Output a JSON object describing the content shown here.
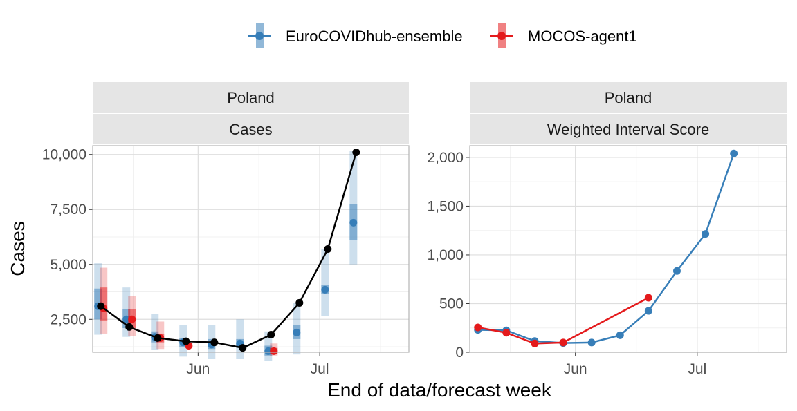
{
  "legend": {
    "entries": [
      {
        "name": "EuroCOVIDhub-ensemble",
        "color": "#377eb8"
      },
      {
        "name": "MOCOS-agent1",
        "color": "#e41a1c"
      }
    ]
  },
  "xlabel": "End of data/forecast week",
  "ylabel": "Cases",
  "chart_data": [
    {
      "type": "line",
      "strip": [
        "Poland",
        "Cases"
      ],
      "ylabel": "Cases",
      "xlabel": "End of data/forecast week",
      "ylim": [
        1000,
        10400
      ],
      "yticks": [
        2500,
        5000,
        7500,
        10000
      ],
      "ytick_labels": [
        "2,500",
        "5,000",
        "7,500",
        "10,000"
      ],
      "xlim": [
        "2021-05-06",
        "2021-07-23"
      ],
      "xticks": [
        "2021-06-01",
        "2021-07-01"
      ],
      "xtick_labels": [
        "Jun",
        "Jul"
      ],
      "observed": {
        "x": [
          "2021-05-08",
          "2021-05-15",
          "2021-05-22",
          "2021-05-29",
          "2021-06-05",
          "2021-06-12",
          "2021-06-19",
          "2021-06-26",
          "2021-07-03",
          "2021-07-10"
        ],
        "y": [
          3100,
          2150,
          1650,
          1500,
          1450,
          1200,
          1800,
          3250,
          5700,
          10100
        ]
      },
      "forecasts": [
        {
          "name": "EuroCOVIDhub-ensemble",
          "color": "#377eb8",
          "x": [
            "2021-05-08",
            "2021-05-15",
            "2021-05-22",
            "2021-05-29",
            "2021-06-05",
            "2021-06-12",
            "2021-06-19",
            "2021-06-26",
            "2021-07-03",
            "2021-07-10"
          ],
          "median": [
            3100,
            2500,
            1700,
            1450,
            1350,
            1400,
            1050,
            1900,
            3850,
            6900
          ],
          "lower_90": [
            1800,
            1700,
            1100,
            800,
            700,
            700,
            600,
            900,
            2650,
            5000
          ],
          "upper_90": [
            5050,
            3950,
            2750,
            2250,
            2250,
            2500,
            1950,
            3250,
            5700,
            10150
          ],
          "lower_50": [
            2500,
            2100,
            1450,
            1250,
            1150,
            1200,
            850,
            1600,
            3650,
            6100
          ],
          "upper_50": [
            3900,
            2950,
            1950,
            1650,
            1600,
            1600,
            1300,
            2250,
            4050,
            7750
          ]
        },
        {
          "name": "MOCOS-agent1",
          "color": "#e41a1c",
          "x": [
            "2021-05-08",
            "2021-05-15",
            "2021-05-22",
            "2021-05-29",
            "2021-06-19"
          ],
          "median": [
            3000,
            2500,
            1650,
            1300,
            1050
          ],
          "lower_90": [
            1850,
            1750,
            1150,
            1200,
            850
          ],
          "upper_90": [
            4850,
            3550,
            2400,
            1450,
            1400
          ],
          "lower_50": [
            2450,
            2100,
            1450,
            1250,
            950
          ],
          "upper_50": [
            3950,
            2950,
            1850,
            1350,
            1200
          ]
        }
      ]
    },
    {
      "type": "line",
      "strip": [
        "Poland",
        "Weighted Interval Score"
      ],
      "xlabel": "End of data/forecast week",
      "ylim": [
        0,
        2120
      ],
      "yticks": [
        0,
        500,
        1000,
        1500,
        2000
      ],
      "ytick_labels": [
        "0",
        "500",
        "1,000",
        "1,500",
        "2,000"
      ],
      "xlim": [
        "2021-05-06",
        "2021-07-23"
      ],
      "xticks": [
        "2021-06-01",
        "2021-07-01"
      ],
      "xtick_labels": [
        "Jun",
        "Jul"
      ],
      "series": [
        {
          "name": "EuroCOVIDhub-ensemble",
          "color": "#377eb8",
          "x": [
            "2021-05-08",
            "2021-05-15",
            "2021-05-22",
            "2021-05-29",
            "2021-06-05",
            "2021-06-12",
            "2021-06-19",
            "2021-06-26",
            "2021-07-03",
            "2021-07-10"
          ],
          "values": [
            230,
            225,
            115,
            95,
            100,
            175,
            425,
            835,
            1215,
            2040
          ]
        },
        {
          "name": "MOCOS-agent1",
          "color": "#e41a1c",
          "x": [
            "2021-05-08",
            "2021-05-15",
            "2021-05-22",
            "2021-05-29",
            "2021-06-19"
          ],
          "values": [
            255,
            200,
            90,
            100,
            560
          ]
        }
      ]
    }
  ]
}
